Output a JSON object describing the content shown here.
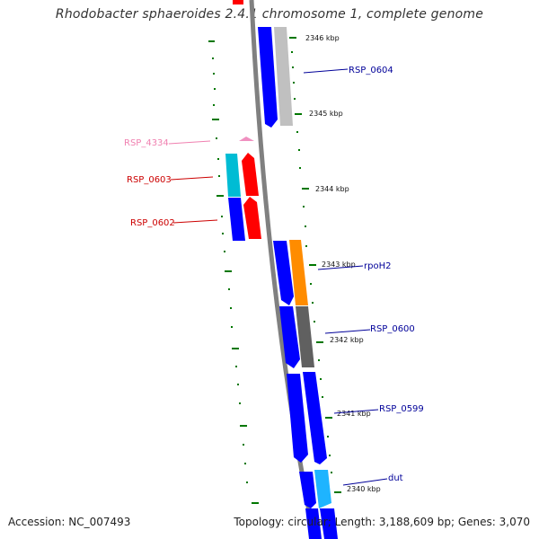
{
  "title": "Rhodobacter sphaeroides 2.4.1 chromosome 1, complete genome",
  "footer": {
    "accession": "Accession: NC_007493",
    "stats": "Topology: circular; Length: 3,188,609 bp; Genes: 3,070"
  },
  "colors": {
    "backbone": "#808080",
    "forward_gene": "#0000ff",
    "grey_gene": "#c0c0c0",
    "dark_grey_gene": "#606060",
    "orange_gene": "#ff8c00",
    "cyan_gene": "#00bcd4",
    "light_blue_gene": "#1eb4ff",
    "red_gene": "#ff0000",
    "pink_gene": "#f090c0",
    "tick": "#007700",
    "label_blue": "#000099",
    "label_red": "#cc0000",
    "label_pink": "#f080b0"
  },
  "kbp_ticks": [
    "2346 kbp",
    "2345 kbp",
    "2344 kbp",
    "2343 kbp",
    "2342 kbp",
    "2341 kbp",
    "2340 kbp"
  ],
  "gene_labels": {
    "rsp_0604": "RSP_0604",
    "rsp_4334": "RSP_4334",
    "rsp_0603": "RSP_0603",
    "rsp_0602": "RSP_0602",
    "rpoh2": "rpoH2",
    "rsp_0600": "RSP_0600",
    "rsp_0599": "RSP_0599",
    "dut": "dut"
  }
}
